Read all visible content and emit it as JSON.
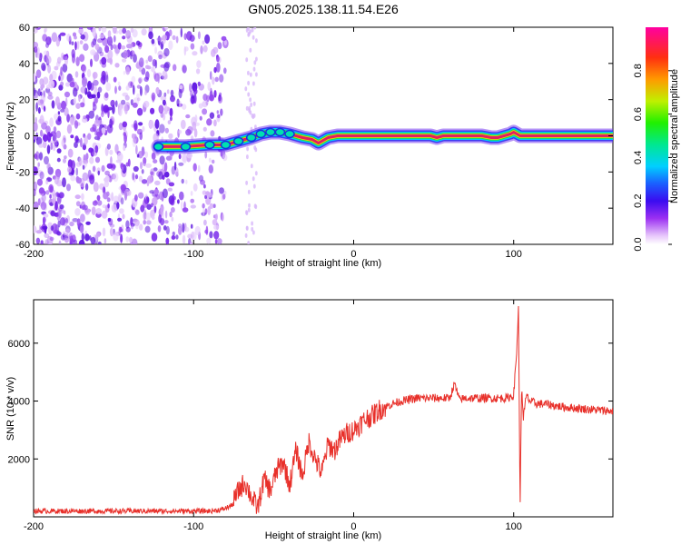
{
  "title": "GN05.2025.138.11.54.E26",
  "colors": {
    "snr_line": "#e8302a",
    "spectral_ridge": "#e02060",
    "scatter": "#6a1be6"
  },
  "colorbar": {
    "label": "Normalized spectral amplitude",
    "ticks": [
      "0.0",
      "0.2",
      "0.4",
      "0.6",
      "0.8"
    ]
  },
  "chart_data": [
    {
      "type": "heatmap",
      "title": "GN05.2025.138.11.54.E26",
      "xlabel": "Height of straight line (km)",
      "ylabel": "Frequency (Hz)",
      "xlim": [
        -200,
        162
      ],
      "ylim": [
        -60,
        60
      ],
      "x_ticks": [
        "-200",
        "-100",
        "0",
        "100"
      ],
      "y_ticks": [
        "-60",
        "-40",
        "-20",
        "0",
        "20",
        "40",
        "60"
      ],
      "colormap_range": [
        0,
        1
      ],
      "ridge": {
        "x": [
          -122,
          -105,
          -90,
          -80,
          -72,
          -64,
          -58,
          -52,
          -46,
          -40,
          -32,
          -26,
          -22,
          -20,
          -16,
          -10,
          0,
          20,
          40,
          48,
          52,
          56,
          62,
          80,
          86,
          90,
          94,
          98,
          100,
          104,
          120,
          140,
          162
        ],
        "y": [
          -6,
          -6,
          -5,
          -5,
          -3,
          -1,
          1,
          2,
          2,
          1,
          -1,
          -2,
          -4,
          -3,
          -1,
          0,
          0,
          0,
          0,
          0,
          -1,
          0,
          0,
          0,
          -1,
          -1,
          0,
          1,
          2,
          0,
          0,
          0,
          0
        ]
      },
      "noise_region_x": [
        -200,
        -80
      ]
    },
    {
      "type": "line",
      "xlabel": "Height of straight line (km)",
      "ylabel": "SNR (10 * v/v)",
      "xlim": [
        -200,
        162
      ],
      "ylim": [
        0,
        7500
      ],
      "x_ticks": [
        "-200",
        "-100",
        "0",
        "100"
      ],
      "y_ticks": [
        "2000",
        "4000",
        "6000"
      ],
      "series": [
        {
          "x": [
            -200,
            -180,
            -160,
            -140,
            -120,
            -100,
            -90,
            -82,
            -76,
            -72,
            -68,
            -64,
            -60,
            -56,
            -52,
            -48,
            -44,
            -40,
            -36,
            -32,
            -28,
            -24,
            -20,
            -16,
            -12,
            -8,
            -4,
            0,
            4,
            8,
            12,
            16,
            20,
            24,
            30,
            40,
            50,
            60,
            63,
            66,
            70,
            80,
            90,
            96,
            100,
            102,
            103,
            104,
            105,
            106,
            108,
            110,
            115,
            120,
            130,
            140,
            150,
            162
          ],
          "y": [
            200,
            200,
            200,
            200,
            200,
            200,
            200,
            250,
            400,
            900,
            1200,
            700,
            300,
            1300,
            900,
            1600,
            1900,
            1100,
            2300,
            1400,
            2600,
            2000,
            1500,
            2500,
            2300,
            2700,
            2900,
            3000,
            3200,
            3400,
            3500,
            3700,
            3800,
            3900,
            4000,
            4100,
            4100,
            4100,
            4600,
            4050,
            4100,
            4100,
            4100,
            4100,
            4200,
            5800,
            7400,
            300,
            4600,
            3400,
            4200,
            4000,
            3900,
            3900,
            3800,
            3750,
            3700,
            3650
          ]
        }
      ]
    }
  ]
}
